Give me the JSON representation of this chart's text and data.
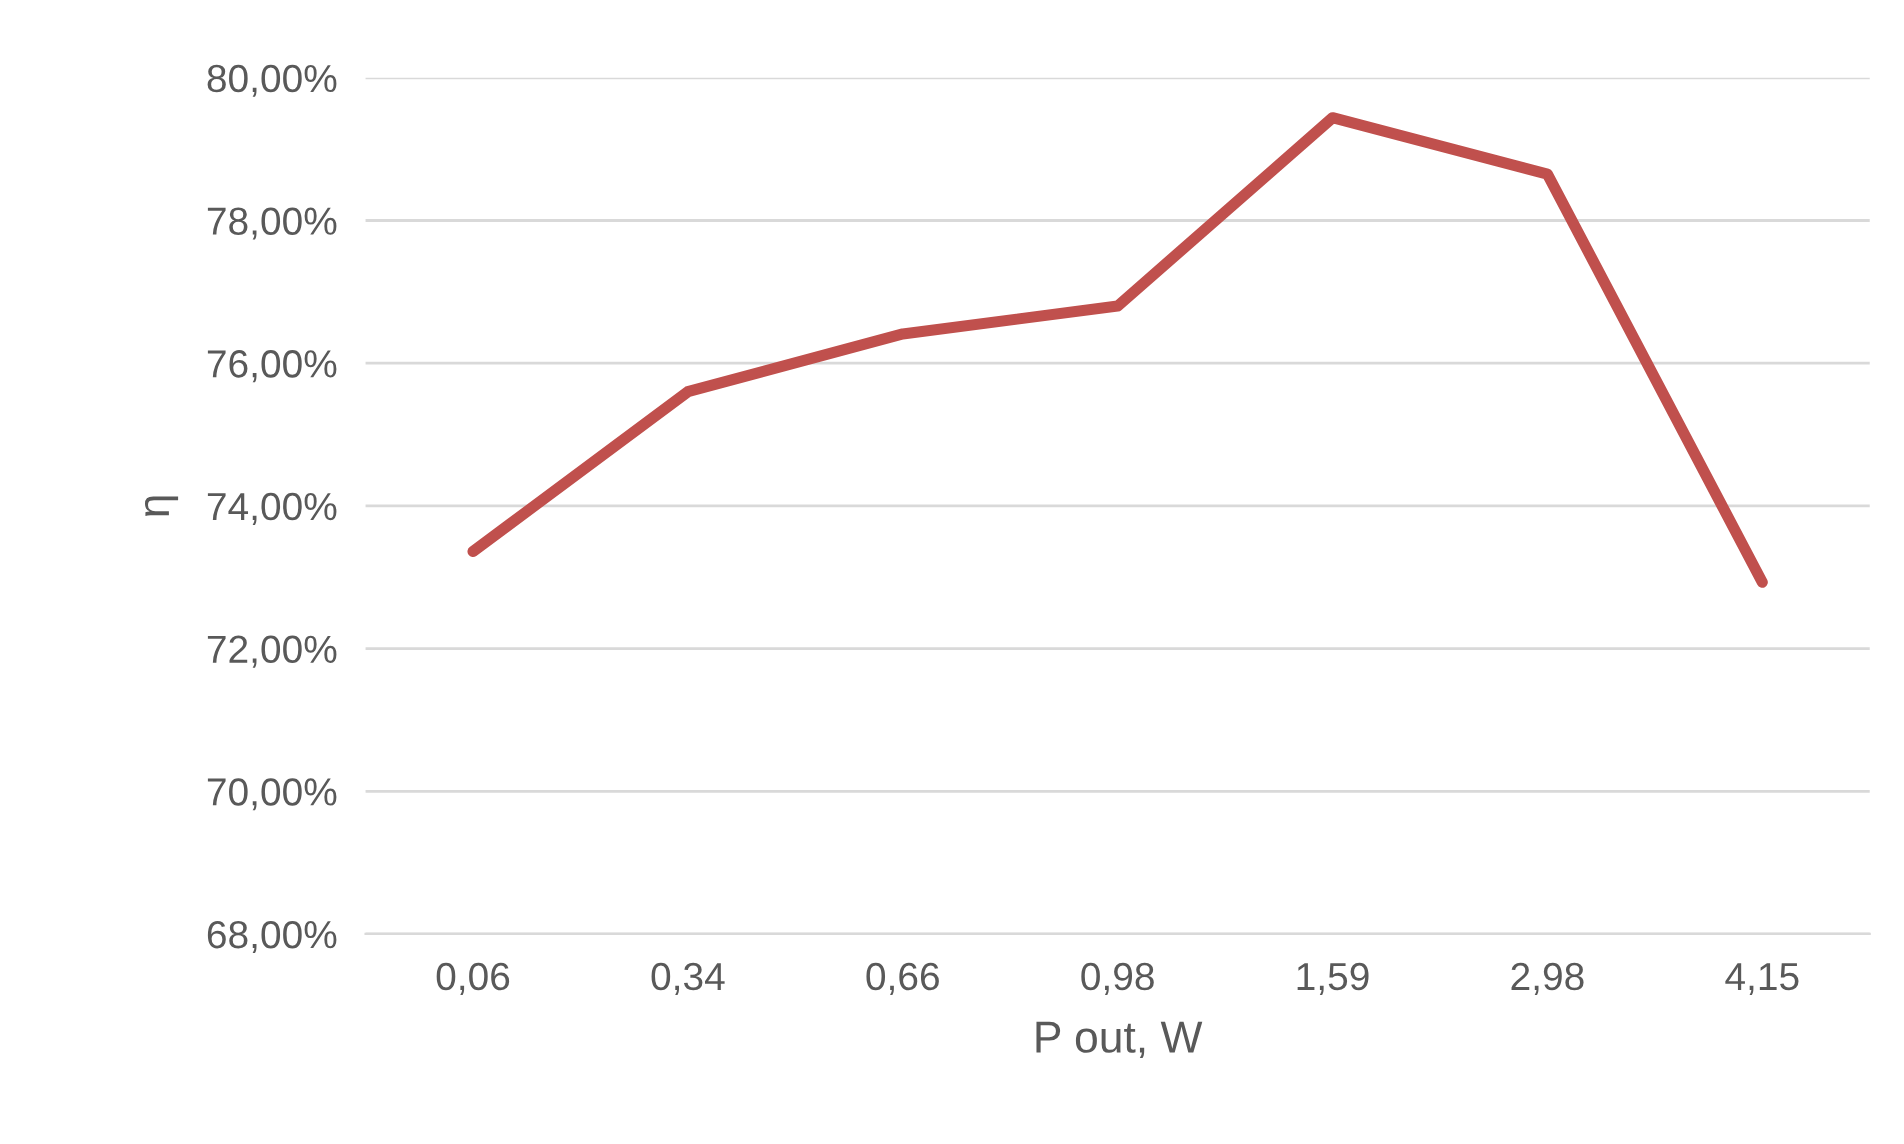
{
  "chart_data": {
    "type": "line",
    "xlabel": "P out, W",
    "ylabel": "η",
    "categories": [
      "0,06",
      "0,34",
      "0,66",
      "0,98",
      "1,59",
      "2,98",
      "4,15"
    ],
    "series": [
      {
        "color": "#c0504d",
        "values": [
          73.36,
          75.6,
          76.41,
          76.8,
          79.44,
          78.65,
          72.93
        ]
      }
    ],
    "ylim": [
      68,
      80
    ],
    "yticks": [
      {
        "value": 68,
        "label": "68,00%"
      },
      {
        "value": 70,
        "label": "70,00%"
      },
      {
        "value": 72,
        "label": "72,00%"
      },
      {
        "value": 74,
        "label": "74,00%"
      },
      {
        "value": 76,
        "label": "76,00%"
      },
      {
        "value": 78,
        "label": "78,00%"
      },
      {
        "value": 80,
        "label": "80,00%"
      }
    ],
    "grid": "y",
    "marker": "none",
    "line_style": "solid",
    "legend": false
  }
}
